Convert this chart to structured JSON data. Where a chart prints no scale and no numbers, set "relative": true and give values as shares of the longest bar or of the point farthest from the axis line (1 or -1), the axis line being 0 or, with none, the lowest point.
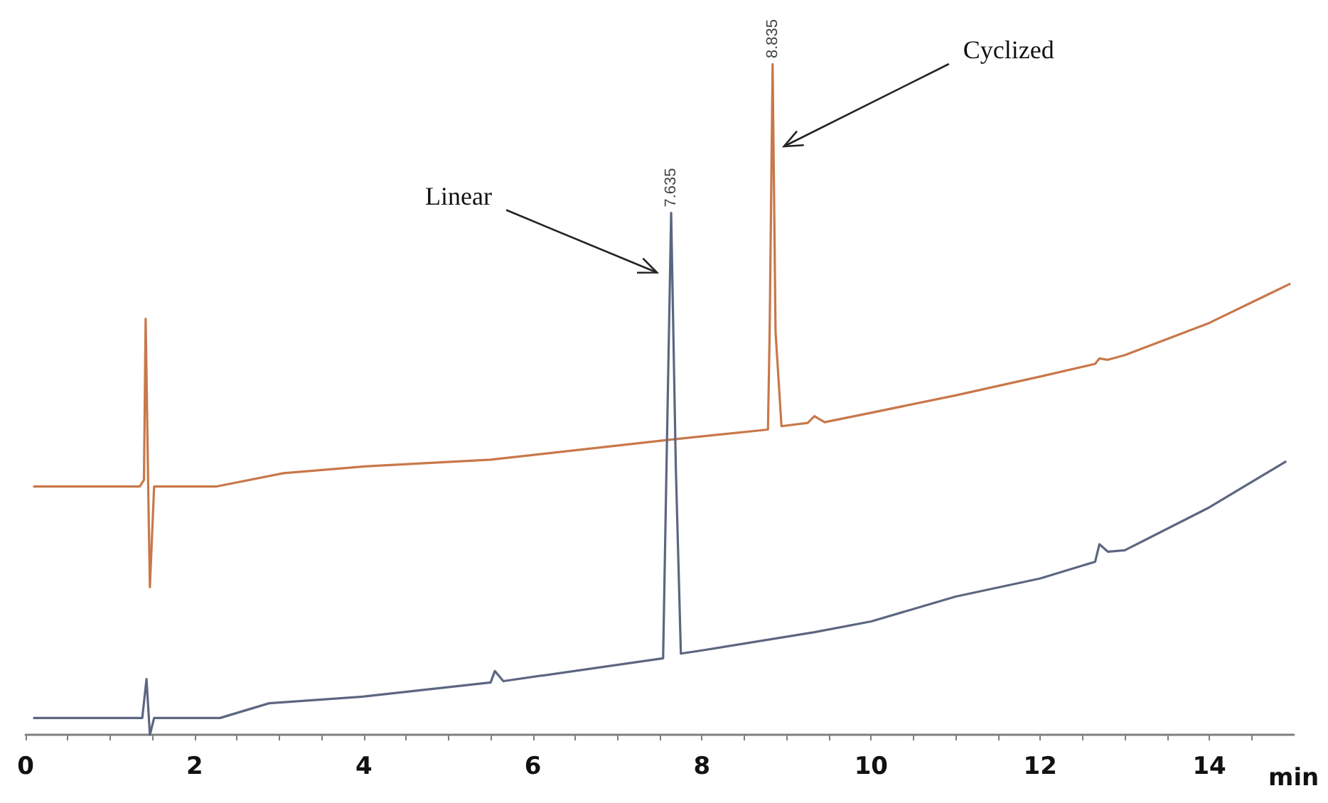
{
  "chart_data": {
    "type": "line",
    "relative": true,
    "xlabel": "min",
    "xlim": [
      0,
      15
    ],
    "xticks": [
      0,
      {
        "value": 0.5,
        "label": null
      },
      {
        "value": 1,
        "label": null
      },
      {
        "value": 1.5,
        "label": null
      },
      2,
      {
        "value": 2.5,
        "label": null
      },
      {
        "value": 3,
        "label": null
      },
      {
        "value": 3.5,
        "label": null
      },
      4,
      {
        "value": 4.5,
        "label": null
      },
      {
        "value": 5,
        "label": null
      },
      {
        "value": 5.5,
        "label": null
      },
      6,
      {
        "value": 6.5,
        "label": null
      },
      {
        "value": 7,
        "label": null
      },
      {
        "value": 7.5,
        "label": null
      },
      8,
      {
        "value": 8.5,
        "label": null
      },
      {
        "value": 9,
        "label": null
      },
      {
        "value": 9.5,
        "label": null
      },
      10,
      {
        "value": 10.5,
        "label": null
      },
      {
        "value": 11,
        "label": null
      },
      {
        "value": 11.5,
        "label": null
      },
      12,
      {
        "value": 12.5,
        "label": null
      },
      {
        "value": 13,
        "label": null
      },
      {
        "value": 13.5,
        "label": null
      },
      14,
      {
        "value": 14.5,
        "label": null
      }
    ],
    "grid": false,
    "series": [
      {
        "color": "#c8784a",
        "x": [
          0.1,
          1.35,
          1.4,
          1.42,
          1.45,
          1.47,
          1.52,
          2.25,
          3.05,
          4.0,
          5.5,
          7.63,
          8.78,
          8.8,
          8.835,
          8.87,
          8.94,
          9.25,
          9.33,
          9.45,
          10,
          11,
          12,
          12.65,
          12.7,
          12.8,
          13,
          14,
          14.95
        ],
        "values": [
          0.37,
          0.37,
          0.38,
          0.62,
          0.37,
          0.22,
          0.37,
          0.37,
          0.39,
          0.4,
          0.41,
          0.44,
          0.455,
          0.6,
          1.0,
          0.6,
          0.46,
          0.465,
          0.475,
          0.466,
          0.48,
          0.506,
          0.534,
          0.553,
          0.561,
          0.559,
          0.566,
          0.614,
          0.672
        ]
      },
      {
        "color": "#5c6680",
        "x": [
          0.1,
          1.38,
          1.43,
          1.47,
          1.52,
          2.3,
          2.88,
          4,
          5.5,
          5.55,
          5.65,
          7.54,
          7.58,
          7.635,
          7.69,
          7.75,
          7.96,
          9.33,
          10,
          11,
          12,
          12.65,
          12.7,
          12.8,
          13,
          14,
          14.9
        ],
        "values": [
          0.025,
          0.025,
          0.083,
          0.0,
          0.025,
          0.025,
          0.047,
          0.057,
          0.078,
          0.095,
          0.08,
          0.114,
          0.4,
          0.778,
          0.4,
          0.121,
          0.125,
          0.153,
          0.169,
          0.206,
          0.233,
          0.258,
          0.284,
          0.273,
          0.275,
          0.339,
          0.407
        ]
      }
    ],
    "annotations": [
      "Linear",
      "Cyclized",
      {
        "text": "7.635",
        "x": 7.635,
        "y": 0.778
      },
      {
        "text": "8.835",
        "x": 8.835,
        "y": 1.0
      }
    ]
  }
}
